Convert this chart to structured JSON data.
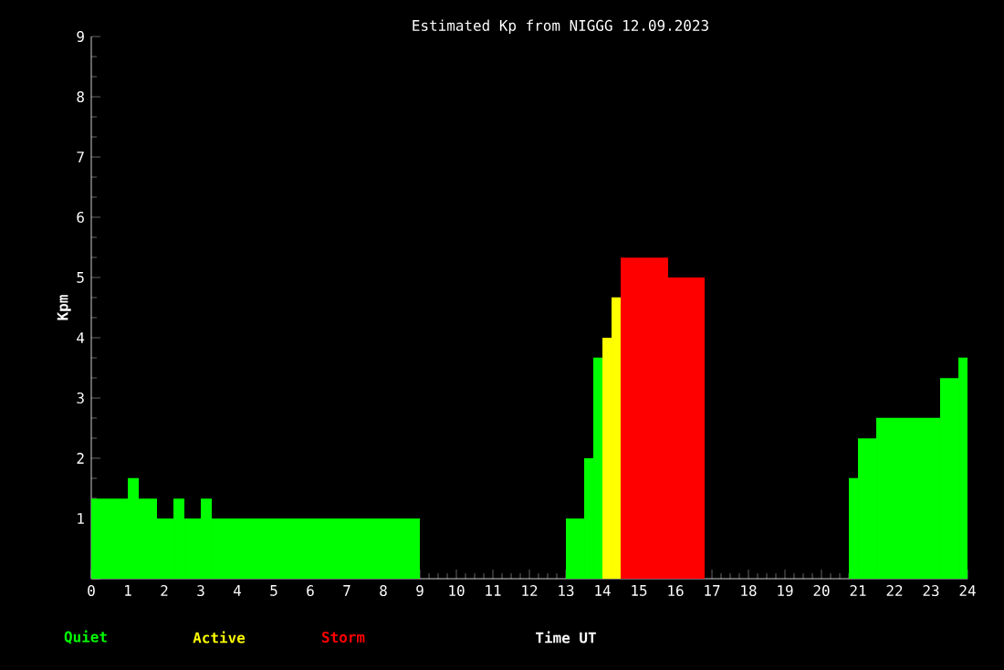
{
  "chart_data": {
    "type": "histogram",
    "title": "Estimated Kp from NIGGG 12.09.2023",
    "xlabel": "Time UT",
    "ylabel": "Kpm",
    "bins": [
      0,
      1,
      1.3,
      1.8,
      2.25,
      2.55,
      3,
      3.3,
      9,
      13,
      13.5,
      13.75,
      14,
      14.25,
      14.5,
      15.8,
      16.8,
      20.75,
      21,
      21.5,
      23.25,
      23.75,
      24
    ],
    "series": [
      {
        "name": "Quiet",
        "color": "#00ff00",
        "values": [
          1.33,
          1.67,
          1.33,
          1,
          1.33,
          1,
          1.33,
          1,
          null,
          1,
          2,
          3.67,
          null,
          null,
          null,
          null,
          null,
          1.67,
          2.33,
          2.67,
          3.33,
          3.67
        ]
      },
      {
        "name": "Active",
        "color": "#ffff00",
        "values": [
          null,
          null,
          null,
          null,
          null,
          null,
          null,
          null,
          null,
          null,
          null,
          null,
          4,
          4.67,
          null,
          null,
          null,
          null,
          null,
          null,
          null,
          null
        ]
      },
      {
        "name": "Storm",
        "color": "#ff0000",
        "values": [
          null,
          null,
          null,
          null,
          null,
          null,
          null,
          null,
          null,
          null,
          null,
          null,
          null,
          null,
          5.33,
          5,
          null,
          null,
          null,
          null,
          null,
          null
        ]
      }
    ],
    "xlim": [
      0,
      24
    ],
    "xticks": [
      0,
      1,
      2,
      3,
      4,
      5,
      6,
      7,
      8,
      9,
      10,
      11,
      12,
      13,
      14,
      15,
      16,
      17,
      18,
      19,
      20,
      21,
      22,
      23,
      24
    ],
    "ylim": [
      0,
      9
    ],
    "yticks": [
      {
        "value": 0,
        "label": null
      },
      1,
      2,
      3,
      4,
      5,
      6,
      7,
      8,
      9
    ],
    "legend": "bottom left",
    "grid": false
  }
}
